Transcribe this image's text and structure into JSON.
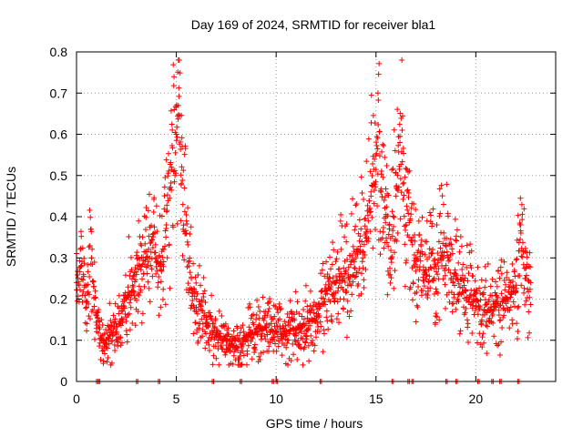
{
  "chart_data": {
    "type": "scatter",
    "title": "Day 169 of 2024, SRMTID for receiver bla1",
    "xlabel": "GPS time / hours",
    "ylabel": "SRMTID / TECUs",
    "xlim": [
      0,
      24
    ],
    "ylim": [
      0,
      0.8
    ],
    "xticks": [
      "0",
      "5",
      "10",
      "15",
      "20"
    ],
    "yticks": [
      "0",
      "0.1",
      "0.2",
      "0.3",
      "0.4",
      "0.5",
      "0.6",
      "0.7",
      "0.8"
    ],
    "grid": true,
    "marker": "+",
    "color": "#ff0000",
    "sample_points": [
      [
        0.0,
        0.24
      ],
      [
        0.25,
        0.28
      ],
      [
        0.5,
        0.18
      ],
      [
        0.75,
        0.3
      ],
      [
        1.0,
        0.16
      ],
      [
        1.25,
        0.1
      ],
      [
        1.5,
        0.09
      ],
      [
        1.75,
        0.12
      ],
      [
        2.0,
        0.14
      ],
      [
        2.25,
        0.15
      ],
      [
        2.5,
        0.2
      ],
      [
        2.75,
        0.22
      ],
      [
        3.0,
        0.26
      ],
      [
        3.25,
        0.28
      ],
      [
        3.5,
        0.3
      ],
      [
        3.75,
        0.34
      ],
      [
        4.0,
        0.3
      ],
      [
        4.25,
        0.27
      ],
      [
        4.5,
        0.38
      ],
      [
        4.75,
        0.52
      ],
      [
        5.0,
        0.6
      ],
      [
        5.1,
        0.67
      ],
      [
        5.25,
        0.48
      ],
      [
        5.5,
        0.36
      ],
      [
        5.75,
        0.25
      ],
      [
        6.0,
        0.18
      ],
      [
        6.5,
        0.15
      ],
      [
        7.0,
        0.11
      ],
      [
        7.5,
        0.1
      ],
      [
        8.0,
        0.08
      ],
      [
        8.5,
        0.11
      ],
      [
        9.0,
        0.12
      ],
      [
        9.5,
        0.13
      ],
      [
        10.0,
        0.12
      ],
      [
        10.5,
        0.12
      ],
      [
        11.0,
        0.13
      ],
      [
        11.5,
        0.14
      ],
      [
        12.0,
        0.15
      ],
      [
        12.5,
        0.22
      ],
      [
        13.0,
        0.24
      ],
      [
        13.5,
        0.27
      ],
      [
        14.0,
        0.3
      ],
      [
        14.5,
        0.36
      ],
      [
        14.75,
        0.45
      ],
      [
        15.0,
        0.55
      ],
      [
        15.1,
        0.7
      ],
      [
        15.25,
        0.46
      ],
      [
        15.5,
        0.4
      ],
      [
        15.75,
        0.3
      ],
      [
        16.0,
        0.45
      ],
      [
        16.2,
        0.58
      ],
      [
        16.5,
        0.38
      ],
      [
        17.0,
        0.3
      ],
      [
        17.5,
        0.26
      ],
      [
        18.0,
        0.28
      ],
      [
        18.5,
        0.33
      ],
      [
        19.0,
        0.25
      ],
      [
        19.5,
        0.22
      ],
      [
        20.0,
        0.2
      ],
      [
        20.5,
        0.17
      ],
      [
        21.0,
        0.18
      ],
      [
        21.5,
        0.2
      ],
      [
        22.0,
        0.22
      ],
      [
        22.25,
        0.38
      ],
      [
        22.5,
        0.25
      ],
      [
        22.75,
        0.24
      ]
    ],
    "zero_points_x": [
      1.0,
      1.1,
      3.0,
      4.1,
      6.8,
      8.2,
      9.8,
      10.0,
      12.2,
      15.8,
      16.6,
      16.8,
      18.5,
      19.0,
      20.1,
      20.8,
      21.2,
      22.1
    ]
  }
}
